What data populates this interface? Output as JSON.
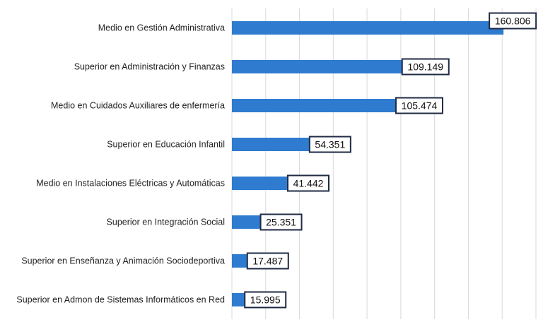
{
  "chart_data": {
    "type": "bar",
    "orientation": "horizontal",
    "title": "",
    "xlabel": "",
    "ylabel": "",
    "categories": [
      "Medio en Gestión Administrativa",
      "Superior en Administración y Finanzas",
      "Medio en Cuidados Auxiliares de enfermería",
      "Superior en Educación Infantil",
      "Medio en Instalaciones Eléctricas y Automáticas",
      "Superior en Integración Social",
      "Superior en Enseñanza y Animación Sociodeportiva",
      "Superior en Admon de Sistemas Informáticos en Red"
    ],
    "values": [
      160806,
      109149,
      105474,
      54351,
      41442,
      25351,
      17487,
      15995
    ],
    "value_labels": [
      "160.806",
      "109.149",
      "105.474",
      "54.351",
      "41.442",
      "25.351",
      "17.487",
      "15.995"
    ],
    "xlim": [
      0,
      180000
    ],
    "grid": true,
    "legend": "none",
    "colors": {
      "bar": "#2e7bcf",
      "label_border": "#1f2a44",
      "grid": "#d9d9d9"
    }
  }
}
